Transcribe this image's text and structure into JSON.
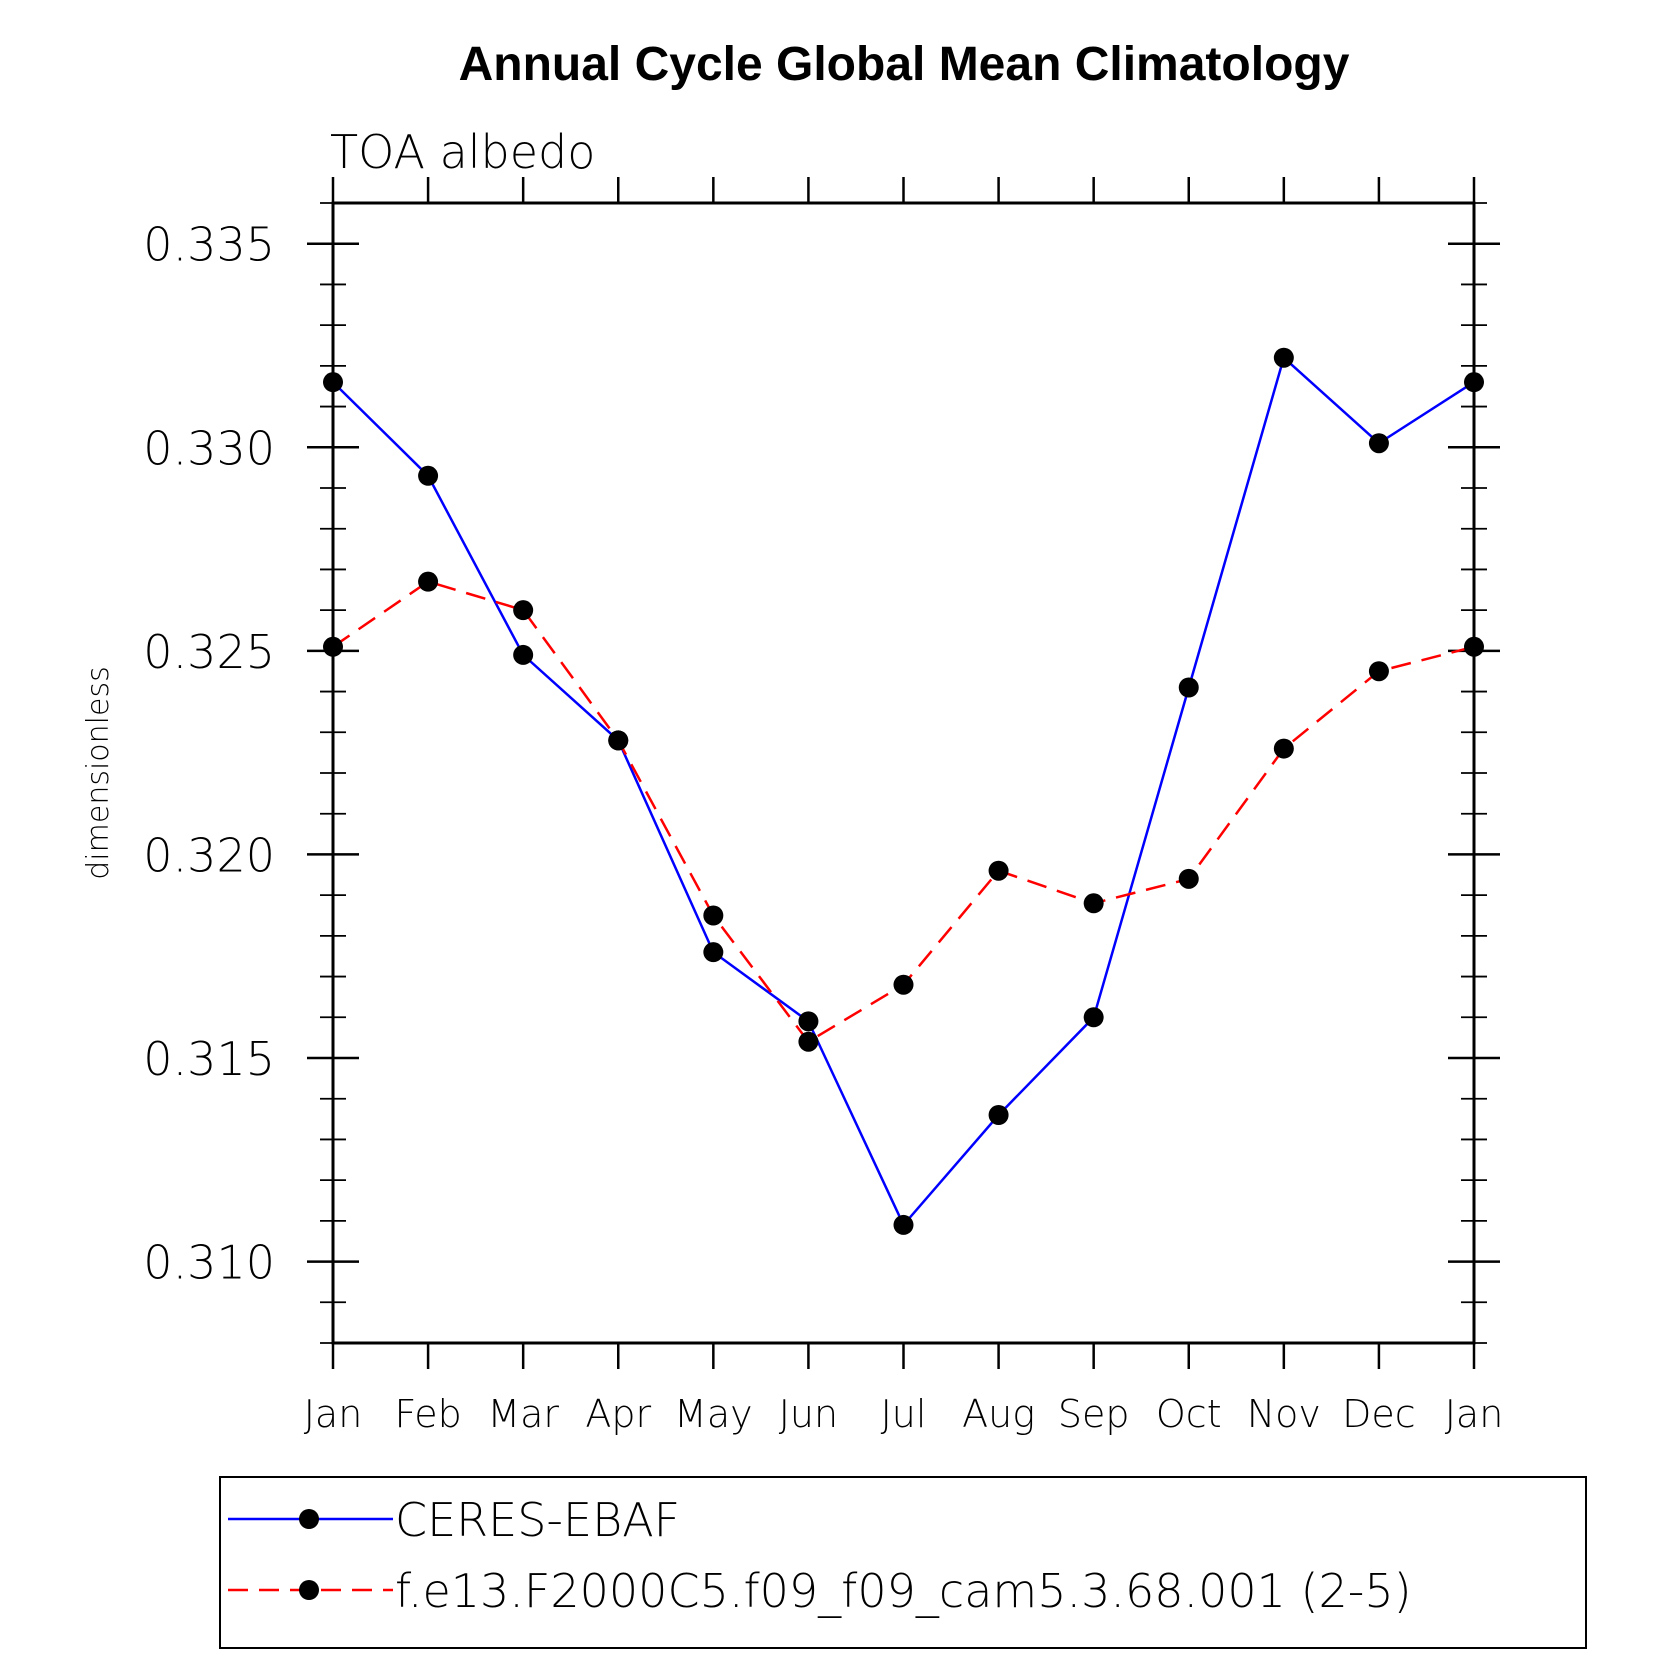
{
  "chart_data": {
    "type": "line",
    "title": "Annual Cycle Global Mean Climatology",
    "subtitle": "TOA albedo",
    "xlabel": "",
    "ylabel": "dimensionless",
    "categories": [
      "Jan",
      "Feb",
      "Mar",
      "Apr",
      "May",
      "Jun",
      "Jul",
      "Aug",
      "Sep",
      "Oct",
      "Nov",
      "Dec",
      "Jan"
    ],
    "ylim": [
      0.308,
      0.336
    ],
    "yticks": [
      0.31,
      0.315,
      0.32,
      0.325,
      0.33,
      0.335
    ],
    "ytick_labels": [
      "0.310",
      "0.315",
      "0.320",
      "0.325",
      "0.330",
      "0.335"
    ],
    "yminor_step": 0.001,
    "grid": false,
    "legend_position": "bottom",
    "series": [
      {
        "name": "CERES-EBAF",
        "color": "#0000ff",
        "dash": "solid",
        "values": [
          0.3316,
          0.3293,
          0.3249,
          0.3228,
          0.3176,
          0.3159,
          0.3109,
          0.3136,
          0.316,
          0.3241,
          0.3322,
          0.3301,
          0.3316
        ]
      },
      {
        "name": "f.e13.F2000C5.f09_f09_cam5.3.68.001 (2-5)",
        "color": "#ff0000",
        "dash": "dashed",
        "values": [
          0.3251,
          0.3267,
          0.326,
          0.3228,
          0.3185,
          0.3154,
          0.3168,
          0.3196,
          0.3188,
          0.3194,
          0.3226,
          0.3245,
          0.3251
        ]
      }
    ]
  }
}
